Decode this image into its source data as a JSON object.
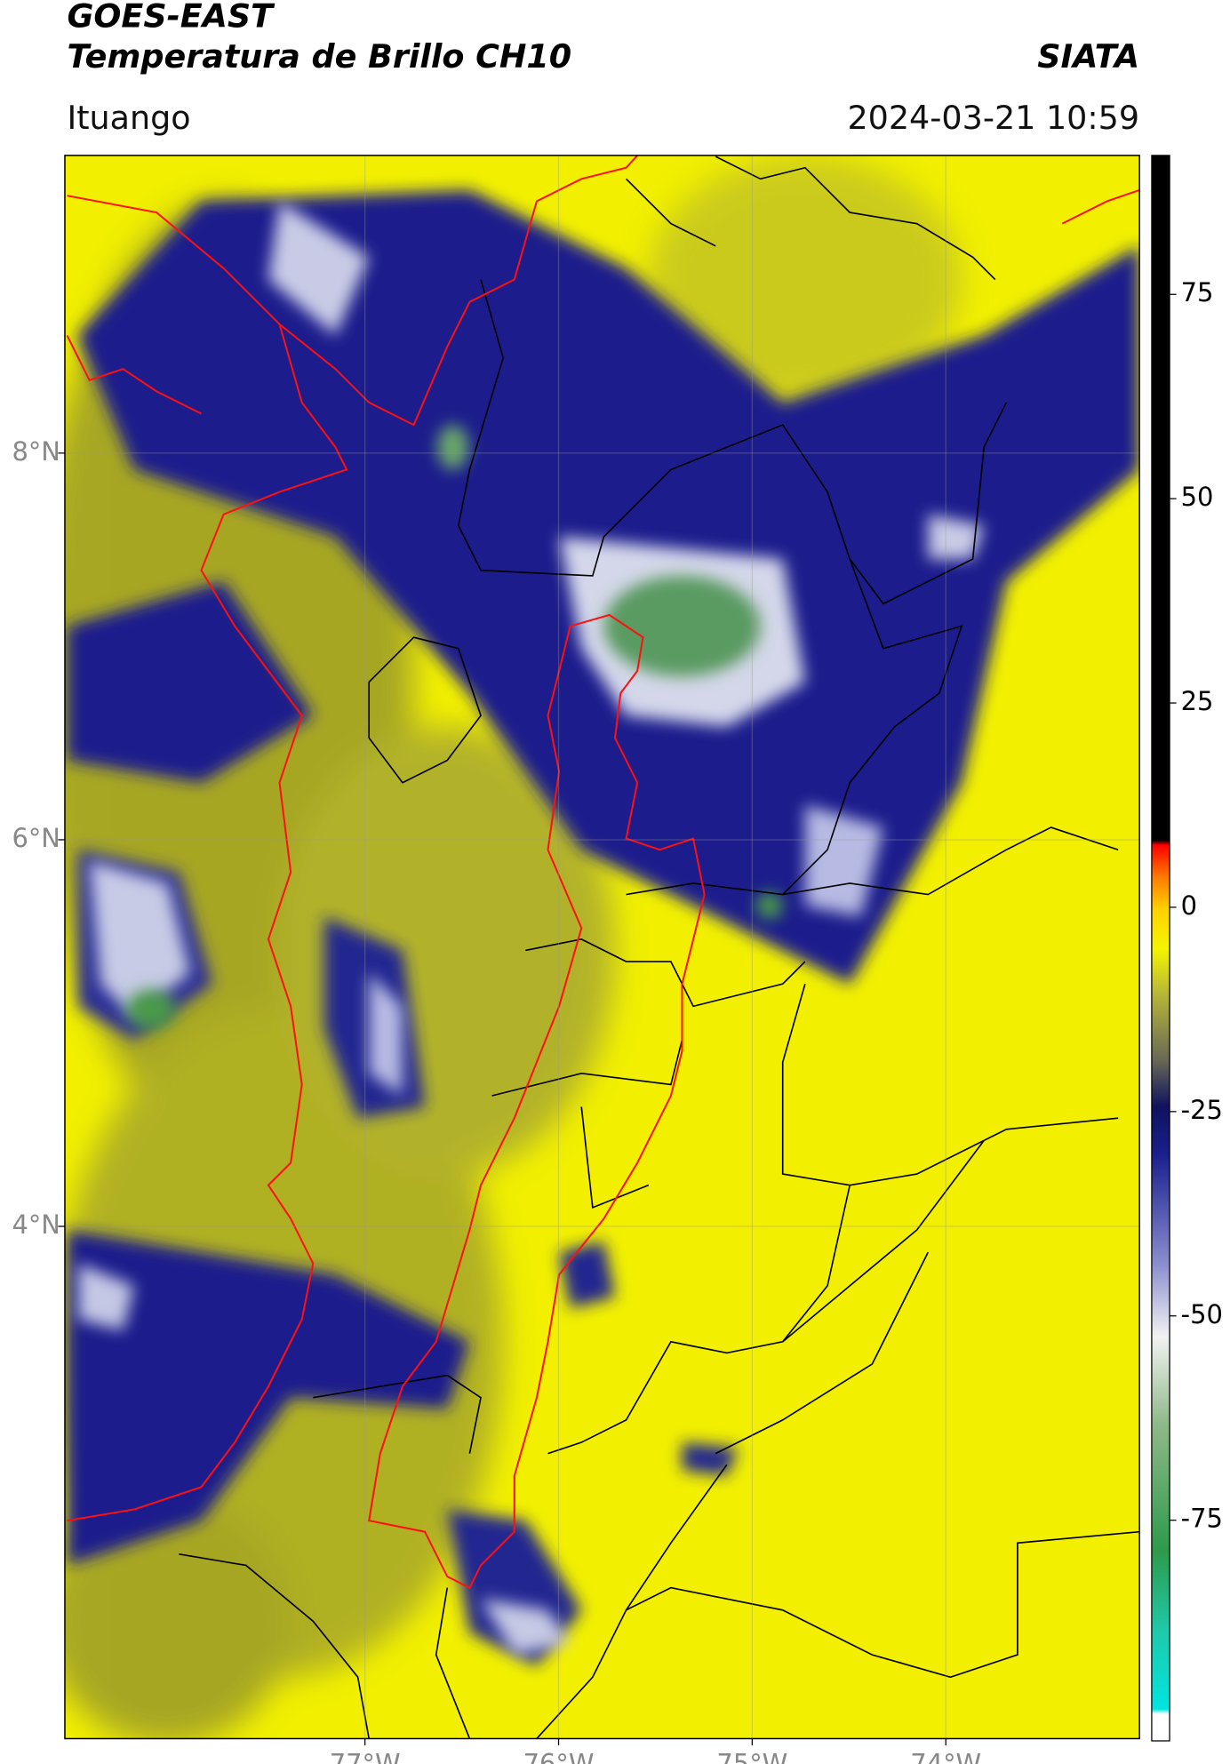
{
  "chart_data": {
    "type": "map",
    "title": "GOES-EAST",
    "subtitle": "Temperatura de Brillo CH10",
    "source": "SIATA",
    "location": "Ituango",
    "datetime": "2024-03-21 10:59",
    "xlim": [
      -78.55,
      -73.0
    ],
    "ylim": [
      1.35,
      9.54
    ],
    "xticks": [
      {
        "value": -77,
        "label": "77°W"
      },
      {
        "value": -76,
        "label": "76°W"
      },
      {
        "value": -75,
        "label": "75°W"
      },
      {
        "value": -74,
        "label": "74°W"
      }
    ],
    "yticks": [
      {
        "value": 8,
        "label": "8°N"
      },
      {
        "value": 6,
        "label": "6°N"
      },
      {
        "value": 4,
        "label": "4°N"
      }
    ],
    "grid": true,
    "colorbar": {
      "lim": [
        -102,
        92
      ],
      "ticks": [
        75,
        50,
        25,
        0,
        -25,
        -50,
        -75
      ]
    }
  }
}
